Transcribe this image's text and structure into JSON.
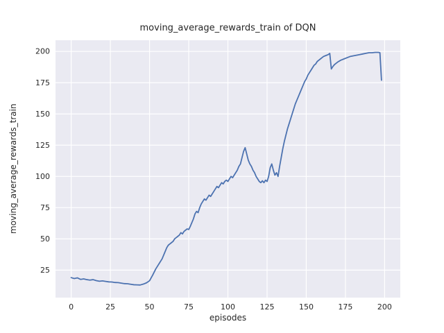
{
  "chart_data": {
    "type": "line",
    "title": "moving_average_rewards_train of DQN",
    "xlabel": "episodes",
    "ylabel": "moving_average_rewards_train",
    "xlim": [
      -10,
      210
    ],
    "ylim": [
      3,
      209
    ],
    "xticks": [
      0,
      25,
      50,
      75,
      100,
      125,
      150,
      175,
      200
    ],
    "yticks": [
      25,
      50,
      75,
      100,
      125,
      150,
      175,
      200
    ],
    "grid": true,
    "legend_position": "none",
    "line_color": "#4c72b0",
    "plot_bg": "#eaeaf2",
    "grid_color": "#ffffff",
    "text_color": "#262626",
    "points": [
      [
        0,
        19
      ],
      [
        2,
        18.3
      ],
      [
        4,
        18.8
      ],
      [
        6,
        17.6
      ],
      [
        8,
        18.0
      ],
      [
        10,
        17.4
      ],
      [
        12,
        17.0
      ],
      [
        14,
        17.4
      ],
      [
        16,
        16.6
      ],
      [
        18,
        16.1
      ],
      [
        20,
        16.4
      ],
      [
        22,
        16.0
      ],
      [
        24,
        15.6
      ],
      [
        26,
        15.5
      ],
      [
        28,
        15.1
      ],
      [
        30,
        15.0
      ],
      [
        32,
        14.6
      ],
      [
        34,
        14.2
      ],
      [
        36,
        14.1
      ],
      [
        38,
        13.7
      ],
      [
        40,
        13.3
      ],
      [
        42,
        13.2
      ],
      [
        44,
        13.1
      ],
      [
        46,
        13.8
      ],
      [
        48,
        14.8
      ],
      [
        50,
        16.5
      ],
      [
        52,
        21
      ],
      [
        54,
        26
      ],
      [
        56,
        30
      ],
      [
        58,
        34
      ],
      [
        60,
        40
      ],
      [
        61,
        43
      ],
      [
        62,
        45
      ],
      [
        63,
        46
      ],
      [
        64,
        47
      ],
      [
        65,
        48
      ],
      [
        66,
        50
      ],
      [
        67,
        51
      ],
      [
        68,
        52
      ],
      [
        69,
        53
      ],
      [
        70,
        55
      ],
      [
        71,
        54
      ],
      [
        72,
        56
      ],
      [
        73,
        57
      ],
      [
        74,
        58
      ],
      [
        75,
        57.5
      ],
      [
        76,
        60
      ],
      [
        77,
        63
      ],
      [
        78,
        66
      ],
      [
        79,
        70
      ],
      [
        80,
        72
      ],
      [
        81,
        71
      ],
      [
        82,
        75
      ],
      [
        83,
        78
      ],
      [
        84,
        80
      ],
      [
        85,
        82
      ],
      [
        86,
        81
      ],
      [
        87,
        83
      ],
      [
        88,
        85
      ],
      [
        89,
        84
      ],
      [
        90,
        86
      ],
      [
        91,
        88
      ],
      [
        92,
        90
      ],
      [
        93,
        92
      ],
      [
        94,
        91
      ],
      [
        95,
        93
      ],
      [
        96,
        95
      ],
      [
        97,
        94
      ],
      [
        98,
        96
      ],
      [
        99,
        97
      ],
      [
        100,
        96
      ],
      [
        101,
        98
      ],
      [
        102,
        100
      ],
      [
        103,
        99
      ],
      [
        104,
        101
      ],
      [
        105,
        103
      ],
      [
        106,
        105
      ],
      [
        107,
        108
      ],
      [
        108,
        110
      ],
      [
        109,
        115
      ],
      [
        110,
        120
      ],
      [
        111,
        123
      ],
      [
        112,
        118
      ],
      [
        113,
        113
      ],
      [
        114,
        110
      ],
      [
        115,
        108
      ],
      [
        116,
        105
      ],
      [
        117,
        103
      ],
      [
        118,
        100
      ],
      [
        119,
        98
      ],
      [
        120,
        96
      ],
      [
        121,
        95
      ],
      [
        122,
        96.5
      ],
      [
        123,
        95
      ],
      [
        124,
        97
      ],
      [
        125,
        96
      ],
      [
        126,
        100
      ],
      [
        127,
        107
      ],
      [
        128,
        110
      ],
      [
        129,
        105
      ],
      [
        130,
        101
      ],
      [
        131,
        103
      ],
      [
        132,
        100
      ],
      [
        133,
        108
      ],
      [
        134,
        115
      ],
      [
        135,
        122
      ],
      [
        136,
        128
      ],
      [
        137,
        133
      ],
      [
        138,
        138
      ],
      [
        139,
        142
      ],
      [
        140,
        146
      ],
      [
        141,
        150
      ],
      [
        142,
        154
      ],
      [
        143,
        158
      ],
      [
        144,
        161
      ],
      [
        145,
        164
      ],
      [
        146,
        167
      ],
      [
        147,
        170
      ],
      [
        148,
        173
      ],
      [
        149,
        176
      ],
      [
        150,
        178
      ],
      [
        151,
        181
      ],
      [
        152,
        183
      ],
      [
        153,
        185
      ],
      [
        154,
        187
      ],
      [
        155,
        189
      ],
      [
        156,
        190
      ],
      [
        157,
        192
      ],
      [
        158,
        193
      ],
      [
        159,
        194
      ],
      [
        160,
        195
      ],
      [
        161,
        196
      ],
      [
        162,
        196.5
      ],
      [
        163,
        197
      ],
      [
        164,
        197.5
      ],
      [
        165,
        198.5
      ],
      [
        166,
        186
      ],
      [
        167,
        188
      ],
      [
        168,
        189.5
      ],
      [
        169,
        190.5
      ],
      [
        170,
        191.5
      ],
      [
        172,
        193
      ],
      [
        174,
        194
      ],
      [
        176,
        195
      ],
      [
        178,
        196
      ],
      [
        180,
        196.5
      ],
      [
        182,
        197
      ],
      [
        184,
        197.5
      ],
      [
        186,
        198
      ],
      [
        188,
        198.5
      ],
      [
        190,
        199
      ],
      [
        192,
        199
      ],
      [
        194,
        199.3
      ],
      [
        196,
        199.3
      ],
      [
        197,
        199
      ],
      [
        198,
        177
      ]
    ]
  }
}
